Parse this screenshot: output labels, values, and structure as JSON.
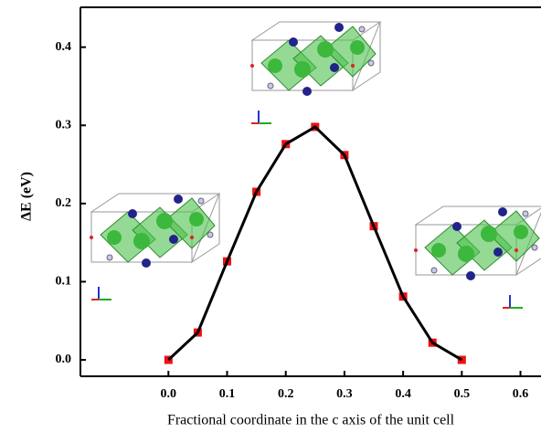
{
  "chart_data": {
    "type": "line",
    "x_label": "Fractional coordinate in the c axis of the unit cell",
    "y_label": "ΔE (eV)",
    "x": [
      0.0,
      0.05,
      0.1,
      0.15,
      0.2,
      0.25,
      0.3,
      0.35,
      0.4,
      0.45,
      0.5
    ],
    "series": [
      {
        "color": "#000000",
        "marker_color": "#ee1111",
        "values": [
          0.0,
          0.035,
          0.126,
          0.215,
          0.276,
          0.298,
          0.262,
          0.171,
          0.081,
          0.022,
          0.0
        ]
      }
    ],
    "xlim": [
      -0.15,
      0.635
    ],
    "ylim": [
      -0.021,
      0.451
    ],
    "xticks": [
      {
        "value": 0,
        "label": "0.0"
      },
      0.1,
      0.2,
      0.3,
      0.4,
      0.5,
      0.6
    ],
    "yticks": [
      {
        "value": 0,
        "label": "0.0"
      },
      0.1,
      0.2,
      0.3,
      0.4
    ],
    "grid": false
  }
}
